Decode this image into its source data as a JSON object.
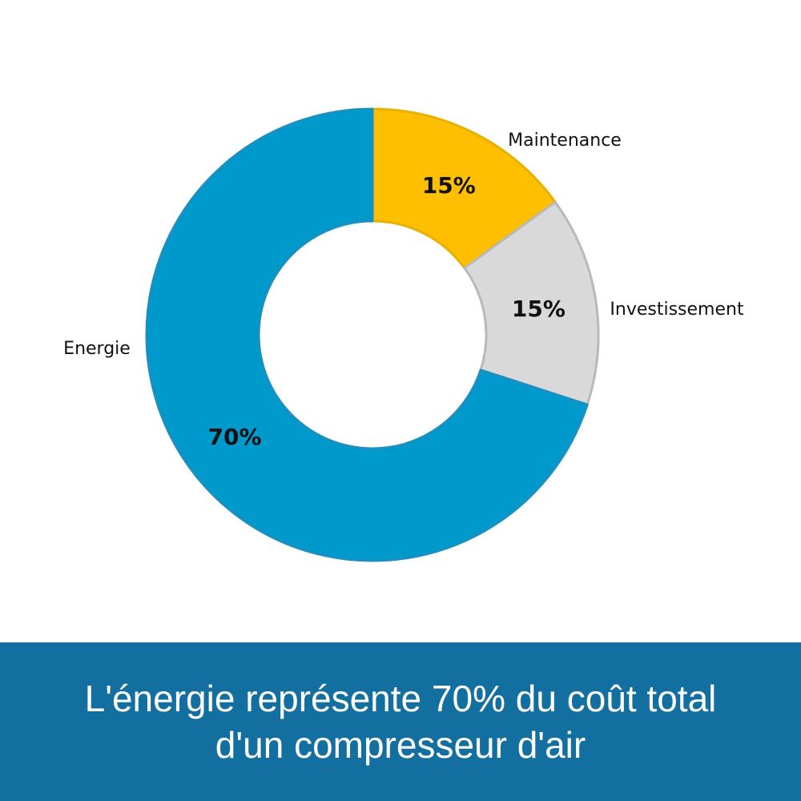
{
  "chart_data": {
    "type": "pie",
    "categories": [
      "Maintenance",
      "Investissement",
      "Energie"
    ],
    "values": [
      15,
      15,
      70
    ],
    "value_labels": [
      "15%",
      "15%",
      "70%"
    ],
    "colors": [
      "#fdbf00",
      "#d9d9d9",
      "#0099cc"
    ],
    "donut": true,
    "title": "",
    "legend": "none"
  },
  "caption": {
    "line1": "L'énergie représente 70% du coût total",
    "line2": "d'un compresseur d'air"
  },
  "colors": {
    "caption_background": "#126fa0",
    "caption_text": "#ffffff"
  }
}
